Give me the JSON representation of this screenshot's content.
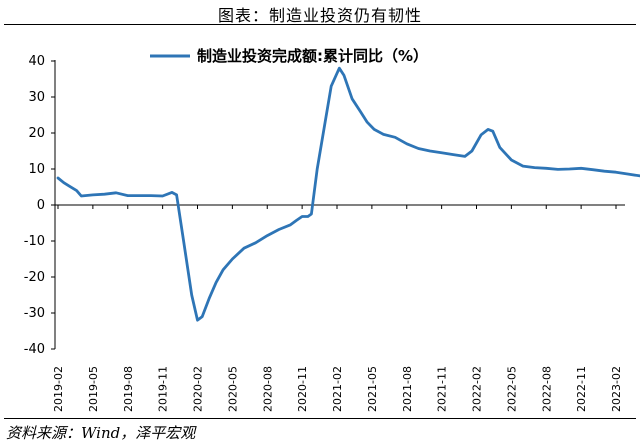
{
  "figure_title": "图表：制造业投资仍有韧性",
  "source_note": "资料来源：Wind，泽平宏观",
  "chart_data": {
    "type": "line",
    "title": "",
    "xlabel": "",
    "ylabel": "",
    "ylim": [
      -40,
      40
    ],
    "yticks": [
      "40",
      "30",
      "20",
      "10",
      "0",
      "-10",
      "-20",
      "-30",
      "-40"
    ],
    "xtick_labels": [
      "2019-02",
      "2019-05",
      "2019-08",
      "2019-11",
      "2020-02",
      "2020-05",
      "2020-08",
      "2020-11",
      "2021-02",
      "2021-05",
      "2021-08",
      "2021-11",
      "2022-02",
      "2022-05",
      "2022-08",
      "2022-11",
      "2023-02"
    ],
    "legend_position": "top",
    "grid": false,
    "line_color": "#2e75b6",
    "series": [
      {
        "name": "制造业投资完成额:累计同比（%）",
        "values": [
          [
            0,
            7.5
          ],
          [
            0.5,
            6.2
          ],
          [
            1,
            5.2
          ],
          [
            1.6,
            4.0
          ],
          [
            2,
            2.5
          ],
          [
            3,
            2.8
          ],
          [
            4,
            3.0
          ],
          [
            5,
            3.4
          ],
          [
            6,
            2.6
          ],
          [
            7,
            2.6
          ],
          [
            8,
            2.6
          ],
          [
            9,
            2.5
          ],
          [
            9.8,
            3.5
          ],
          [
            10.2,
            2.8
          ],
          [
            10.8,
            -10.0
          ],
          [
            11.5,
            -25.0
          ],
          [
            12,
            -32.0
          ],
          [
            12.4,
            -31.0
          ],
          [
            13,
            -26.0
          ],
          [
            13.6,
            -21.5
          ],
          [
            14.2,
            -18.0
          ],
          [
            15,
            -15.0
          ],
          [
            16,
            -12.0
          ],
          [
            17,
            -10.5
          ],
          [
            18,
            -8.5
          ],
          [
            19,
            -6.8
          ],
          [
            20,
            -5.5
          ],
          [
            20.5,
            -4.3
          ],
          [
            21,
            -3.2
          ],
          [
            21.5,
            -3.2
          ],
          [
            21.8,
            -2.5
          ],
          [
            22.3,
            10.0
          ],
          [
            23.5,
            33.0
          ],
          [
            24.2,
            38.0
          ],
          [
            24.6,
            36.0
          ],
          [
            25.3,
            29.5
          ],
          [
            26,
            26.0
          ],
          [
            26.6,
            23.0
          ],
          [
            27.2,
            21.0
          ],
          [
            28,
            19.6
          ],
          [
            29,
            18.8
          ],
          [
            30,
            17.0
          ],
          [
            31,
            15.7
          ],
          [
            32,
            15.0
          ],
          [
            33,
            14.5
          ],
          [
            34,
            14.0
          ],
          [
            35,
            13.5
          ],
          [
            35.6,
            15.0
          ],
          [
            36.4,
            19.5
          ],
          [
            37,
            21.0
          ],
          [
            37.4,
            20.5
          ],
          [
            38,
            16.0
          ],
          [
            39,
            12.5
          ],
          [
            40,
            10.8
          ],
          [
            41,
            10.4
          ],
          [
            42,
            10.2
          ],
          [
            43,
            9.9
          ],
          [
            44,
            10.0
          ],
          [
            45,
            10.2
          ],
          [
            46,
            9.8
          ],
          [
            47,
            9.4
          ],
          [
            48,
            9.1
          ],
          [
            49,
            8.6
          ],
          [
            50,
            8.1
          ]
        ]
      }
    ]
  }
}
